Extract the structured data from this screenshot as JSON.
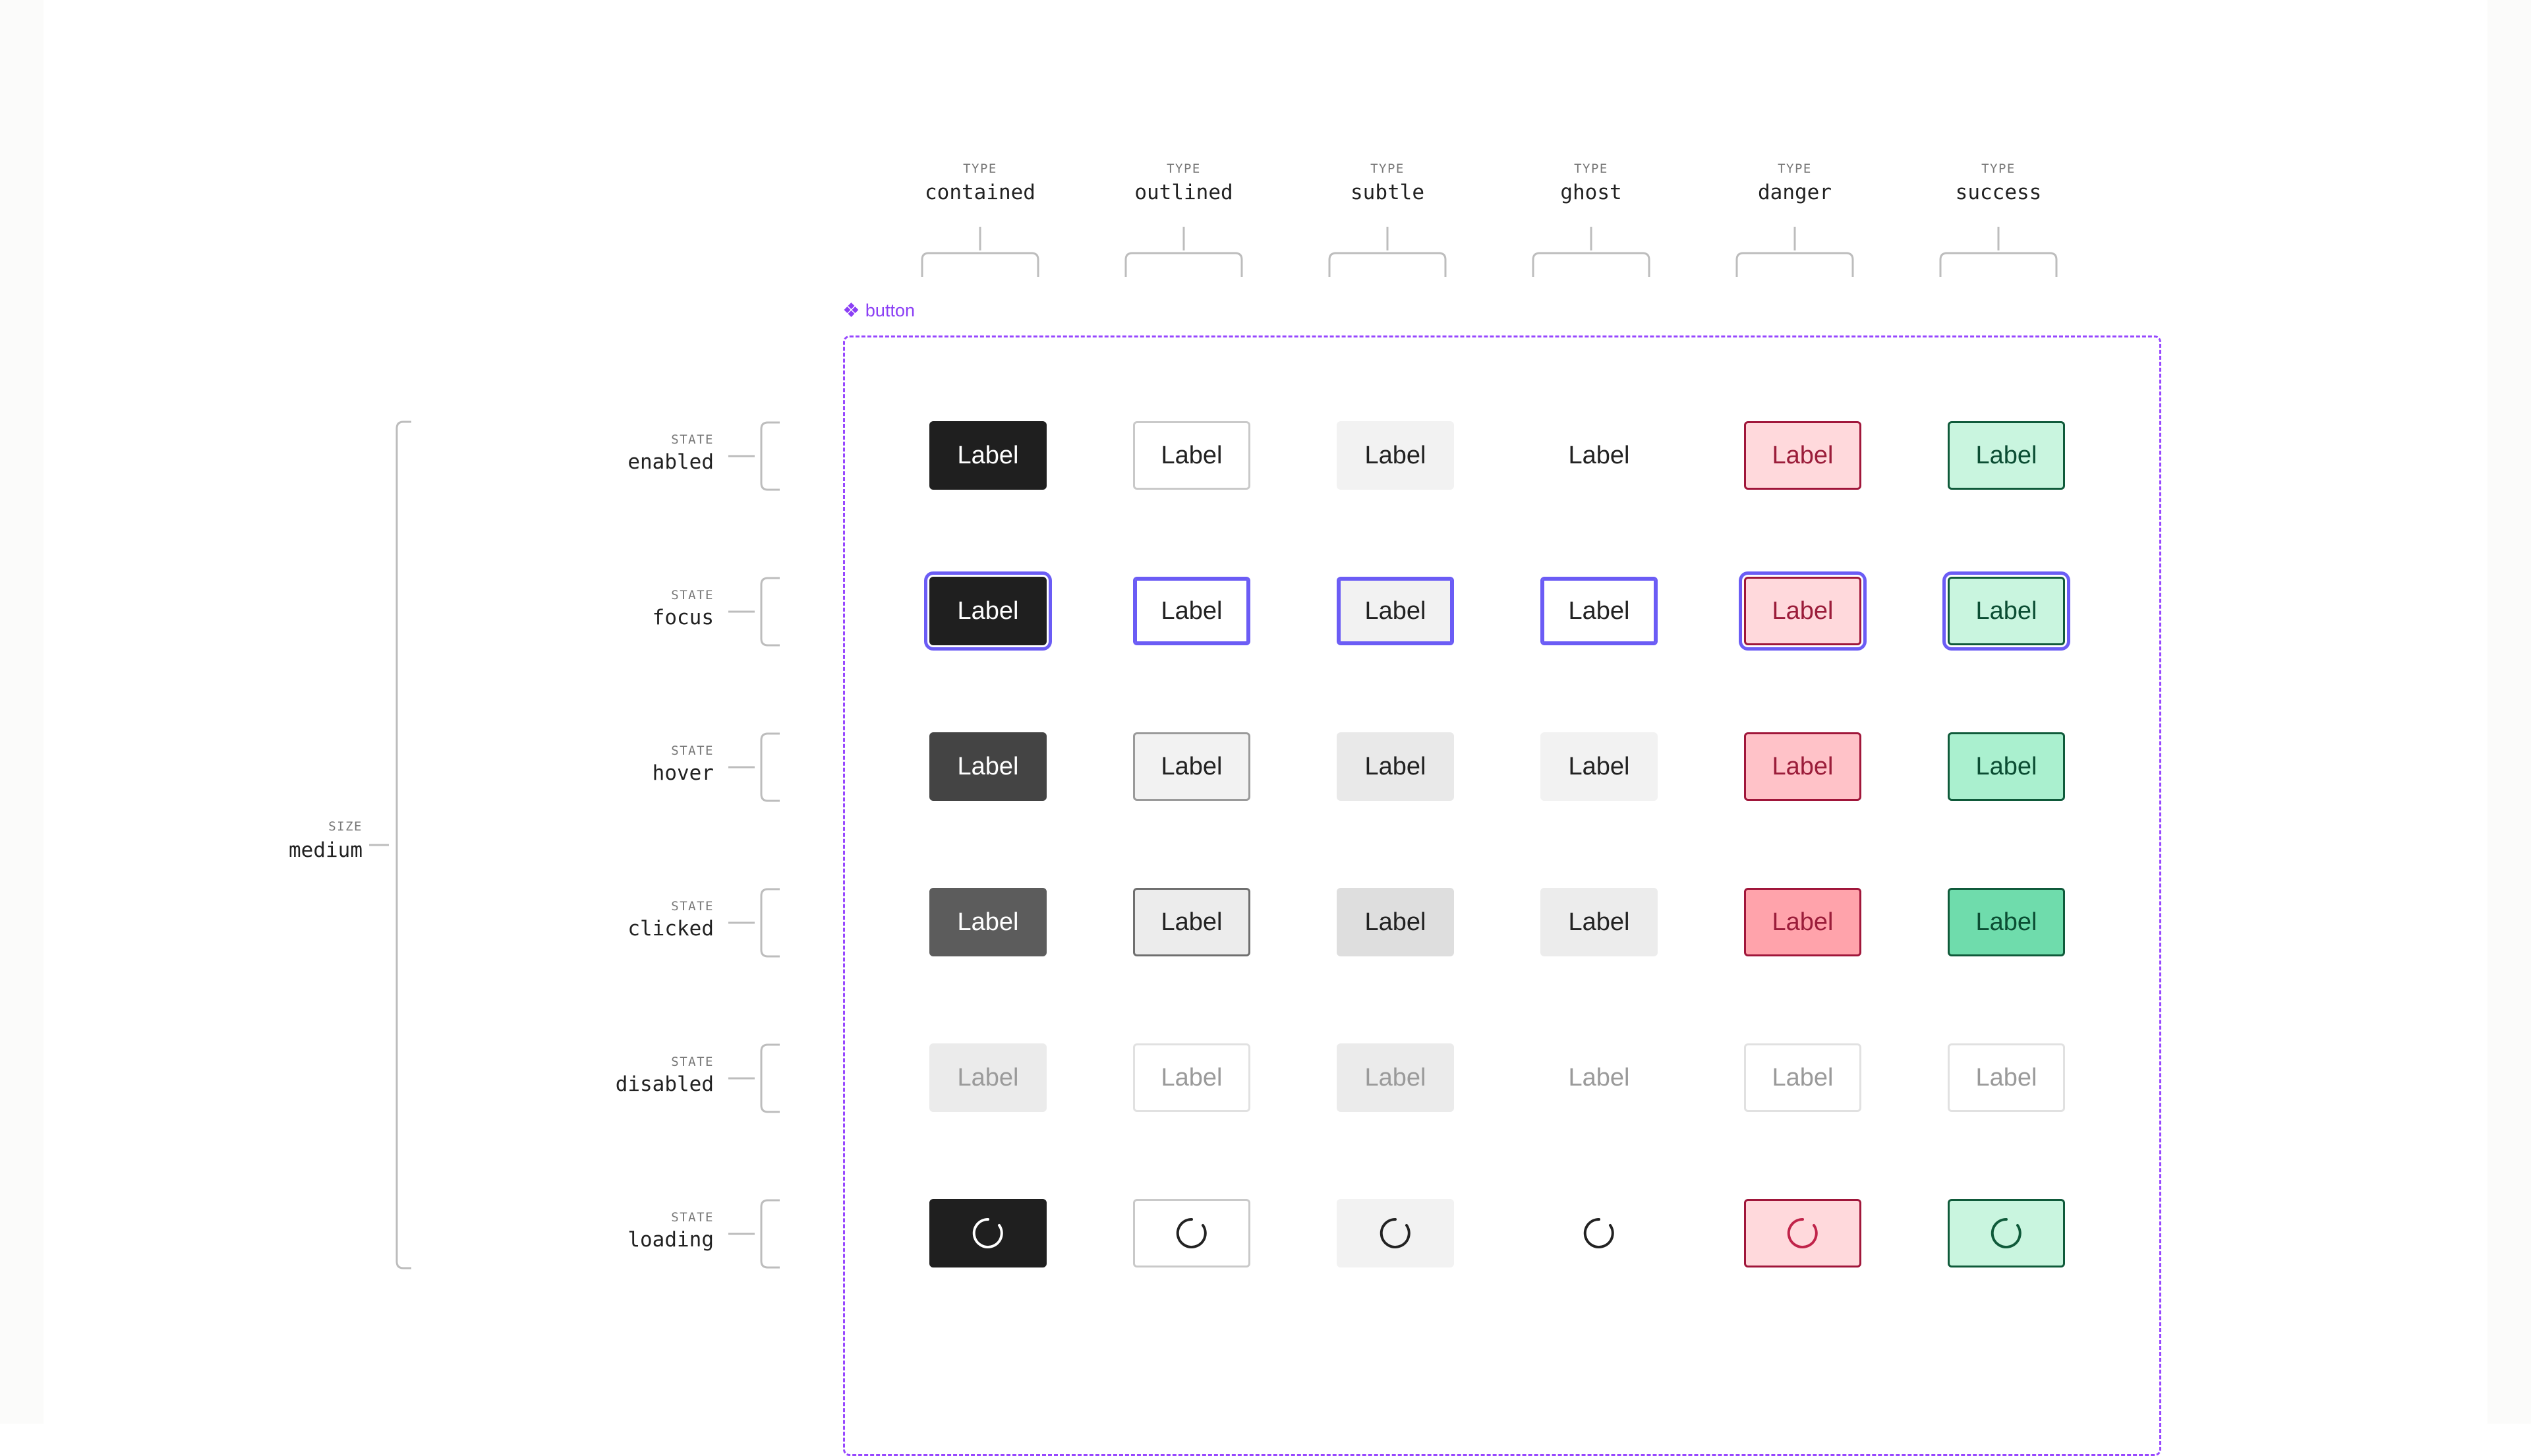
{
  "frame": {
    "tag_icon": "component-diamond-icon",
    "tag_label": "button",
    "accent": "#9747ff"
  },
  "size": {
    "caption": "SIZE",
    "name": "medium"
  },
  "columns": [
    {
      "caption": "TYPE",
      "name": "contained"
    },
    {
      "caption": "TYPE",
      "name": "outlined"
    },
    {
      "caption": "TYPE",
      "name": "subtle"
    },
    {
      "caption": "TYPE",
      "name": "ghost"
    },
    {
      "caption": "TYPE",
      "name": "danger"
    },
    {
      "caption": "TYPE",
      "name": "success"
    }
  ],
  "rows": [
    {
      "caption": "STATE",
      "name": "enabled"
    },
    {
      "caption": "STATE",
      "name": "focus"
    },
    {
      "caption": "STATE",
      "name": "hover"
    },
    {
      "caption": "STATE",
      "name": "clicked"
    },
    {
      "caption": "STATE",
      "name": "disabled"
    },
    {
      "caption": "STATE",
      "name": "loading"
    }
  ],
  "button": {
    "label": "Label",
    "loading_icon": "spinner-icon"
  },
  "colors": {
    "focus_ring": "#6b5cf5",
    "danger_text": "#9b1d3a",
    "success_text": "#0b4d33"
  }
}
